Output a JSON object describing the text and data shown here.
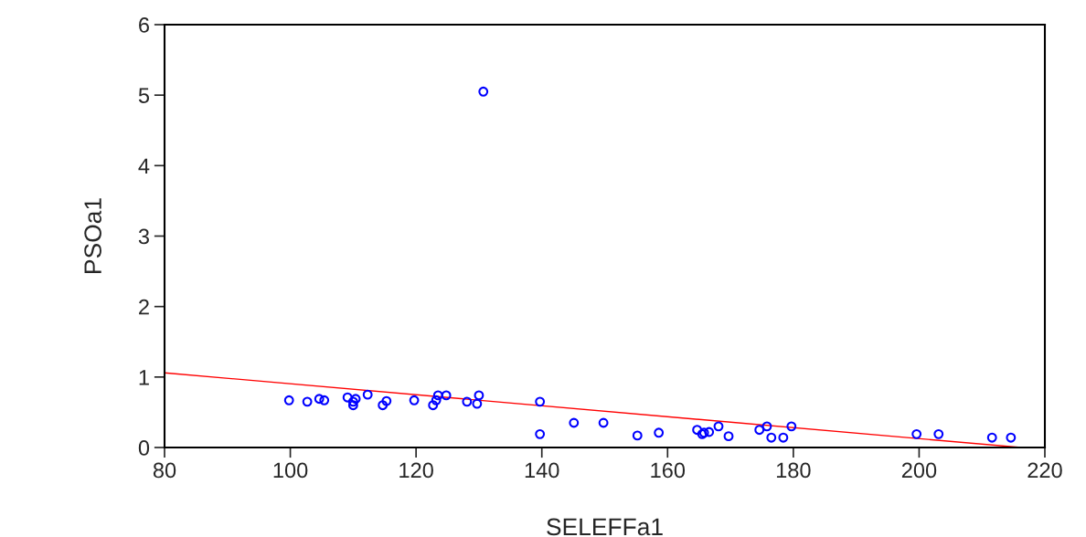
{
  "chart_data": {
    "type": "scatter",
    "xlabel": "SELEFFa1",
    "ylabel": "PSOa1",
    "xlim": [
      80,
      220
    ],
    "ylim": [
      0,
      6
    ],
    "xticks": [
      80,
      100,
      120,
      140,
      160,
      180,
      200,
      220
    ],
    "yticks": [
      0,
      1,
      2,
      3,
      4,
      5,
      6
    ],
    "grid": false,
    "legend": false,
    "series": [
      {
        "marker": "circle",
        "color": "#0000ff",
        "x": [
          99.8,
          102.7,
          104.6,
          105.4,
          109.1,
          110,
          110,
          110.4,
          112.3,
          114.7,
          115.3,
          119.7,
          122.7,
          123.2,
          123.5,
          124.8,
          128.1,
          129.7,
          130,
          130.7,
          139.7,
          139.7,
          145.1,
          149.8,
          155.2,
          158.6,
          164.7,
          165.5,
          165.8,
          166.6,
          168.1,
          169.7,
          174.6,
          175.8,
          176.5,
          178.4,
          179.7,
          199.6,
          203.1,
          211.6,
          214.6
        ],
        "values": [
          0.67,
          0.65,
          0.69,
          0.67,
          0.71,
          0.65,
          0.6,
          0.69,
          0.75,
          0.6,
          0.66,
          0.67,
          0.6,
          0.67,
          0.74,
          0.74,
          0.65,
          0.62,
          0.74,
          5.05,
          0.65,
          0.19,
          0.35,
          0.35,
          0.17,
          0.21,
          0.25,
          0.19,
          0.21,
          0.22,
          0.3,
          0.16,
          0.25,
          0.3,
          0.14,
          0.14,
          0.3,
          0.19,
          0.19,
          0.14,
          0.14
        ]
      },
      {
        "type": "line",
        "color": "#ff0000",
        "x": [
          80,
          216.2
        ],
        "values": [
          1.06,
          0
        ]
      }
    ]
  }
}
